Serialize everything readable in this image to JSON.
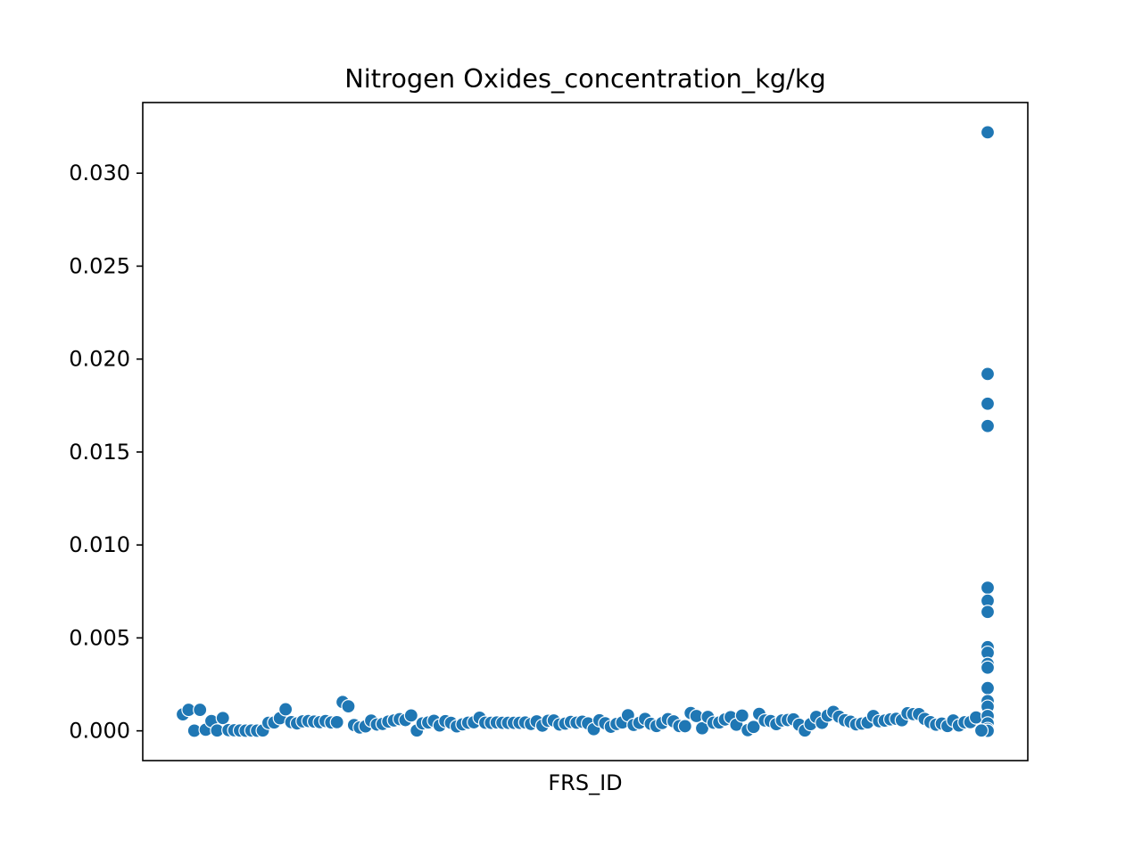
{
  "chart_data": {
    "type": "scatter",
    "title": "Nitrogen Oxides_concentration_kg/kg",
    "xlabel": "FRS_ID",
    "ylabel": "",
    "ylim": [
      -0.0016,
      0.0338
    ],
    "yticks": [
      "0.000",
      "0.005",
      "0.010",
      "0.015",
      "0.020",
      "0.025",
      "0.030"
    ],
    "ytick_values": [
      0,
      0.005,
      0.01,
      0.015,
      0.02,
      0.025,
      0.03
    ],
    "xticks": [],
    "grid": false,
    "legend": "none",
    "marker_color": "#1f77b4",
    "series": [
      {
        "values": [
          0.00089,
          0.00113,
          1e-05,
          0.00113,
          6e-05,
          0.00053,
          2e-05,
          0.00069,
          4e-05,
          3e-05,
          2e-05,
          1e-05,
          2e-05,
          1e-05,
          2e-05,
          0.00043,
          0.00045,
          0.00068,
          0.00116,
          0.00047,
          0.0004,
          0.00051,
          0.00053,
          0.0005,
          0.00047,
          0.00053,
          0.00045,
          0.00047,
          0.00155,
          0.00132,
          0.00031,
          0.00018,
          0.00024,
          0.00055,
          0.00034,
          0.00037,
          0.0005,
          0.00056,
          0.00063,
          0.00058,
          0.00083,
          2e-05,
          0.0004,
          0.00045,
          0.00054,
          0.00029,
          0.00052,
          0.00043,
          0.00024,
          0.00035,
          0.00044,
          0.00046,
          0.00071,
          0.00044,
          0.00043,
          0.00045,
          0.00043,
          0.00043,
          0.00043,
          0.00043,
          0.00045,
          0.00037,
          0.00051,
          0.00028,
          0.00054,
          0.00056,
          0.00034,
          0.00039,
          0.00048,
          0.00044,
          0.00049,
          0.0004,
          9e-05,
          0.00057,
          0.00041,
          0.00022,
          0.00037,
          0.00045,
          0.00084,
          0.00032,
          0.00043,
          0.00064,
          0.00038,
          0.00026,
          0.00042,
          0.00063,
          0.00051,
          0.00026,
          0.00025,
          0.00096,
          0.0008,
          0.00014,
          0.00075,
          0.00044,
          0.00045,
          0.00061,
          0.00074,
          0.00033,
          0.00082,
          4e-05,
          0.00021,
          0.00091,
          0.00056,
          0.00053,
          0.00036,
          0.00056,
          0.00058,
          0.00062,
          0.00033,
          2e-05,
          0.00036,
          0.00075,
          0.00043,
          0.00082,
          0.00102,
          0.00076,
          0.00057,
          0.00049,
          0.00035,
          0.00039,
          0.00045,
          0.0008,
          0.00052,
          0.00055,
          0.00062,
          0.00065,
          0.00057,
          0.00095,
          0.0009,
          0.0009,
          0.00064,
          0.00047,
          0.00033,
          0.00039,
          0.00026,
          0.00056,
          0.00029,
          0.00046,
          0.00047,
          0.00072
        ]
      },
      {
        "values": [
          0.0322,
          0.0192,
          0.0176,
          0.0164,
          0.0077,
          0.007,
          0.0064,
          0.0045,
          0.0042,
          0.0036,
          0.0034,
          0.0023,
          0.0016,
          0.0013,
          0.0008,
          0.0004,
          0.0001,
          0.0
        ]
      }
    ]
  }
}
